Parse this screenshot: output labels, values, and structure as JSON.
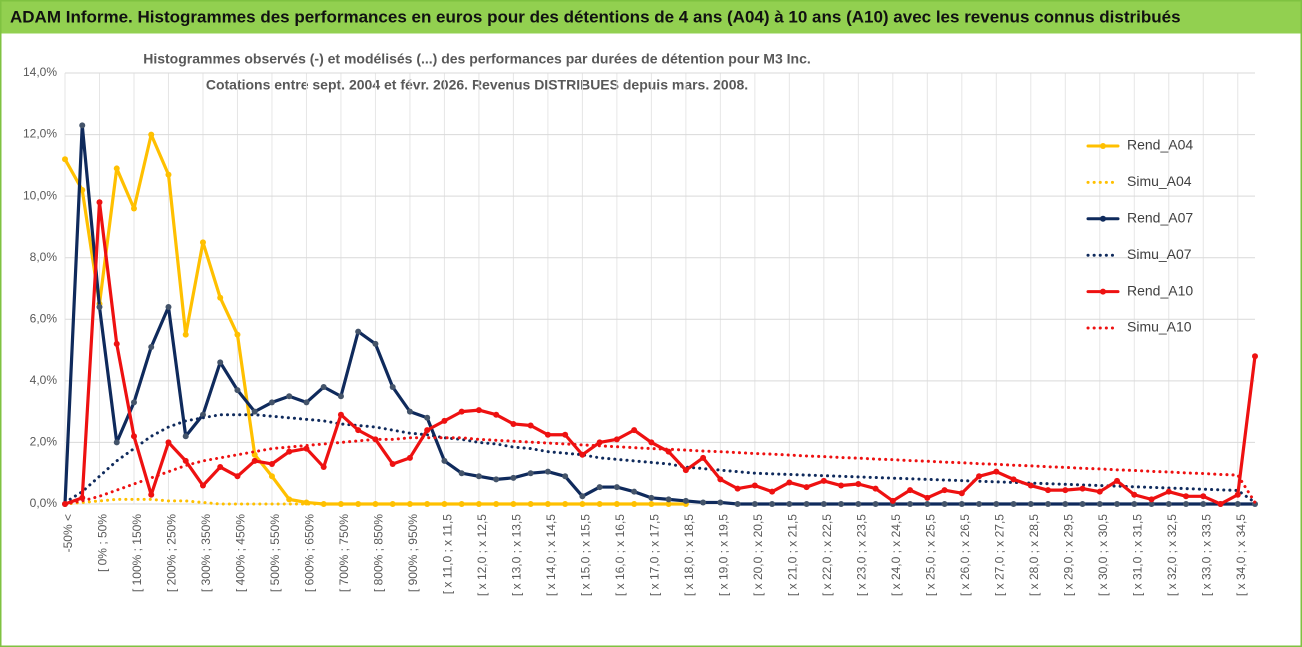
{
  "header": {
    "title": "ADAM Informe. Histogrammes des performances en euros pour des détentions de 4 ans (A04) à 10 ans (A10) avec les revenus connus distribués"
  },
  "chart_data": {
    "type": "line",
    "title": "Histogrammes observés (-)  et modélisés (...) des performances par durées de détention pour M3 Inc.",
    "subtitle": "Cotations entre sept. 2004 et févr. 2026.  Revenus DISTRIBUES depuis mars. 2008.",
    "categories": [
      "-50% <",
      null,
      "[ 0% ; 50%",
      null,
      "[ 100% ; 150%",
      null,
      "[ 200% ; 250%",
      null,
      "[ 300% ; 350%",
      null,
      "[ 400% ; 450%",
      null,
      "[ 500% ; 550%",
      null,
      "[ 600% ; 650%",
      null,
      "[ 700% ; 750%",
      null,
      "[ 800% ; 850%",
      null,
      "[ 900% ; 950%",
      null,
      "[ x 11,0 ; x 11,5",
      null,
      "[ x 12,0 ; x 12,5",
      null,
      "[ x 13,0 ; x 13,5",
      null,
      "[ x 14,0 ; x 14,5",
      null,
      "[ x 15,0 ; x 15,5",
      null,
      "[ x 16,0 ; x 16,5",
      null,
      "[ x 17,0 ; x 17,5",
      null,
      "[ x 18,0 ; x 18,5",
      null,
      "[ x 19,0 ; x 19,5",
      null,
      "[ x 20,0 ; x 20,5",
      null,
      "[ x 21,0 ; x 21,5",
      null,
      "[ x 22,0 ; x 22,5",
      null,
      "[ x 23,0 ; x 23,5",
      null,
      "[ x 24,0 ; x 24,5",
      null,
      "[ x 25,0 ; x 25,5",
      null,
      "[ x 26,0 ; x 26,5",
      null,
      "[ x 27,0 ; x 27,5",
      null,
      "[ x 28,0 ; x 28,5",
      null,
      "[ x 29,0 ; x 29,5",
      null,
      "[ x 30,0 ; x 30,5",
      null,
      "[ x 31,0 ; x 31,5",
      null,
      "[ x 32,0 ; x 32,5",
      null,
      "[ x 33,0 ; x 33,5",
      null,
      "[ x 34,0 ; x 34,5",
      null
    ],
    "ylim": [
      0,
      14
    ],
    "yticks": [
      {
        "value": 0,
        "label": "0,0%"
      },
      {
        "value": 2,
        "label": "2,0%"
      },
      {
        "value": 4,
        "label": "4,0%"
      },
      {
        "value": 6,
        "label": "6,0%"
      },
      {
        "value": 8,
        "label": "8,0%"
      },
      {
        "value": 10,
        "label": "10,0%"
      },
      {
        "value": 12,
        "label": "12,0%"
      },
      {
        "value": 14,
        "label": "14,0%"
      }
    ],
    "grid": true,
    "legend": "right",
    "series": [
      {
        "name": "Rend_A04",
        "color": "#ffc000",
        "line_style": "solid",
        "markers": true,
        "values": [
          11.2,
          10.2,
          6.5,
          10.9,
          9.6,
          12.0,
          10.7,
          5.5,
          8.5,
          6.7,
          5.5,
          1.6,
          0.9,
          0.15,
          0.05,
          0,
          0,
          0,
          0,
          0,
          0,
          0,
          0,
          0,
          0,
          0,
          0,
          0,
          0,
          0,
          0,
          0,
          0,
          0,
          0,
          0,
          0,
          null,
          null,
          null,
          null,
          null,
          null,
          null,
          null,
          null,
          null,
          null,
          null,
          null,
          null,
          null,
          null,
          null,
          null,
          null,
          null,
          null,
          null,
          null,
          null,
          null,
          null,
          null,
          null,
          null,
          null,
          null,
          null,
          null
        ]
      },
      {
        "name": "Simu_A04",
        "color": "#ffc000",
        "line_style": "dotted",
        "markers": false,
        "values": [
          0,
          0.05,
          0.1,
          0.15,
          0.15,
          0.15,
          0.1,
          0.1,
          0.05,
          0,
          0,
          0,
          0,
          0,
          0,
          0,
          0,
          0,
          0,
          0,
          0,
          0,
          0,
          0,
          0,
          0,
          0,
          0,
          0,
          0,
          0,
          0,
          0,
          0,
          0,
          0,
          0,
          null,
          null,
          null,
          null,
          null,
          null,
          null,
          null,
          null,
          null,
          null,
          null,
          null,
          null,
          null,
          null,
          null,
          null,
          null,
          null,
          null,
          null,
          null,
          null,
          null,
          null,
          null,
          null,
          null,
          null,
          null,
          null,
          null
        ]
      },
      {
        "name": "Rend_A07",
        "color": "#0f2a5c",
        "line_style": "solid",
        "markers": true,
        "values": [
          0,
          12.3,
          6.4,
          2.0,
          3.3,
          5.1,
          6.4,
          2.2,
          2.9,
          4.6,
          3.7,
          3.0,
          3.3,
          3.5,
          3.3,
          3.8,
          3.5,
          5.6,
          5.2,
          3.8,
          3.0,
          2.8,
          1.4,
          1.0,
          0.9,
          0.8,
          0.85,
          1.0,
          1.05,
          0.9,
          0.25,
          0.55,
          0.55,
          0.4,
          0.2,
          0.15,
          0.1,
          0.05,
          0.05,
          0,
          0,
          0,
          0,
          0,
          0,
          0,
          0,
          0,
          0,
          0,
          0,
          0,
          0,
          0,
          0,
          0,
          0,
          0,
          0,
          0,
          0,
          0,
          0,
          0,
          0,
          0,
          0,
          0,
          0,
          0
        ]
      },
      {
        "name": "Simu_A07",
        "color": "#0f2a5c",
        "line_style": "dotted",
        "markers": false,
        "values": [
          0.05,
          0.4,
          0.9,
          1.4,
          1.8,
          2.2,
          2.5,
          2.7,
          2.8,
          2.9,
          2.9,
          2.9,
          2.85,
          2.8,
          2.75,
          2.7,
          2.6,
          2.55,
          2.5,
          2.4,
          2.3,
          2.25,
          2.15,
          2.1,
          2.0,
          1.95,
          1.85,
          1.8,
          1.7,
          1.65,
          1.6,
          1.5,
          1.45,
          1.4,
          1.35,
          1.3,
          1.2,
          1.15,
          1.1,
          1.05,
          1.0,
          0.98,
          0.96,
          0.94,
          0.92,
          0.9,
          0.88,
          0.86,
          0.84,
          0.82,
          0.8,
          0.78,
          0.76,
          0.74,
          0.72,
          0.7,
          0.68,
          0.66,
          0.64,
          0.62,
          0.6,
          0.58,
          0.56,
          0.54,
          0.52,
          0.5,
          0.48,
          0.46,
          0.44,
          0.05
        ]
      },
      {
        "name": "Rend_A10",
        "color": "#ee1111",
        "line_style": "solid",
        "markers": true,
        "values": [
          0,
          0.2,
          9.8,
          5.2,
          2.2,
          0.3,
          2.0,
          1.4,
          0.6,
          1.2,
          0.9,
          1.4,
          1.3,
          1.7,
          1.8,
          1.2,
          2.9,
          2.4,
          2.1,
          1.3,
          1.5,
          2.4,
          2.7,
          3.0,
          3.05,
          2.9,
          2.6,
          2.55,
          2.25,
          2.25,
          1.6,
          2.0,
          2.1,
          2.4,
          2.0,
          1.7,
          1.1,
          1.5,
          0.8,
          0.5,
          0.6,
          0.4,
          0.7,
          0.55,
          0.75,
          0.6,
          0.65,
          0.5,
          0.1,
          0.45,
          0.2,
          0.45,
          0.35,
          0.9,
          1.05,
          0.8,
          0.6,
          0.45,
          0.45,
          0.5,
          0.4,
          0.75,
          0.3,
          0.15,
          0.4,
          0.25,
          0.25,
          0,
          0.3,
          4.8
        ]
      },
      {
        "name": "Simu_A10",
        "color": "#ee1111",
        "line_style": "dotted",
        "markers": false,
        "values": [
          0,
          0.1,
          0.25,
          0.45,
          0.65,
          0.85,
          1.05,
          1.25,
          1.4,
          1.5,
          1.6,
          1.7,
          1.8,
          1.85,
          1.9,
          1.95,
          2.0,
          2.05,
          2.1,
          2.1,
          2.15,
          2.15,
          2.15,
          2.15,
          2.1,
          2.07,
          2.04,
          2.01,
          1.98,
          1.95,
          1.92,
          1.89,
          1.86,
          1.83,
          1.8,
          1.78,
          1.75,
          1.72,
          1.7,
          1.67,
          1.64,
          1.62,
          1.59,
          1.56,
          1.54,
          1.51,
          1.49,
          1.46,
          1.44,
          1.41,
          1.39,
          1.36,
          1.34,
          1.31,
          1.29,
          1.26,
          1.24,
          1.21,
          1.19,
          1.16,
          1.14,
          1.11,
          1.09,
          1.06,
          1.04,
          1.01,
          0.99,
          0.96,
          0.94,
          0.05
        ]
      }
    ]
  }
}
